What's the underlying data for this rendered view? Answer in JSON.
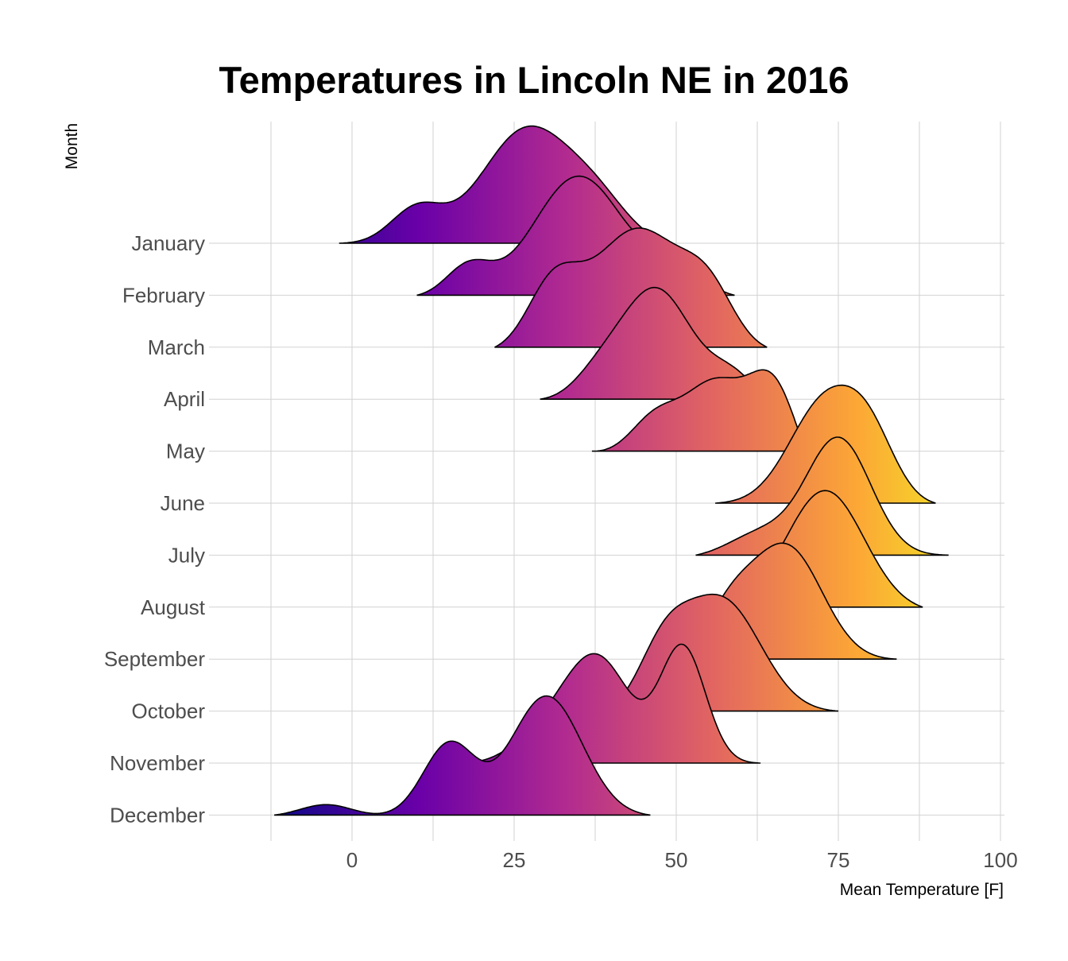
{
  "chart_data": {
    "type": "ridgeline",
    "title": "Temperatures in Lincoln NE in 2016",
    "xlabel": "Mean Temperature [F]",
    "ylabel": "Month",
    "xticks": [
      0,
      25,
      50,
      75,
      100
    ],
    "xlim": [
      -12,
      100
    ],
    "grid": true,
    "legend": "none",
    "colormap": "plasma",
    "colormap_stops": [
      "#0d0887",
      "#6a00a8",
      "#b12a90",
      "#e16462",
      "#fca636",
      "#f0f921"
    ],
    "months": [
      {
        "name": "January",
        "min": -2,
        "max": 49,
        "peaks": [
          [
            10,
            0.3,
            4
          ],
          [
            27,
            1.0,
            7
          ],
          [
            38,
            0.3,
            5
          ]
        ]
      },
      {
        "name": "February",
        "min": 10,
        "max": 59,
        "peaks": [
          [
            18,
            0.25,
            3.5
          ],
          [
            35,
            1.0,
            7
          ],
          [
            50,
            0.25,
            4
          ]
        ]
      },
      {
        "name": "March",
        "min": 22,
        "max": 64,
        "peaks": [
          [
            31,
            0.5,
            4
          ],
          [
            44,
            1.0,
            7
          ],
          [
            55,
            0.4,
            4
          ]
        ]
      },
      {
        "name": "April",
        "min": 29,
        "max": 64,
        "peaks": [
          [
            38,
            0.2,
            4
          ],
          [
            47,
            1.0,
            5.5
          ],
          [
            59,
            0.3,
            4
          ]
        ]
      },
      {
        "name": "May",
        "min": 37,
        "max": 70,
        "peaks": [
          [
            47,
            0.45,
            4
          ],
          [
            56,
            0.85,
            4.5
          ],
          [
            65,
            1.0,
            4
          ]
        ]
      },
      {
        "name": "June",
        "min": 56,
        "max": 90,
        "peaks": [
          [
            73,
            1.0,
            5.5
          ],
          [
            80,
            0.5,
            4
          ]
        ]
      },
      {
        "name": "July",
        "min": 53,
        "max": 92,
        "peaks": [
          [
            63,
            0.2,
            5
          ],
          [
            75,
            1.0,
            5
          ]
        ]
      },
      {
        "name": "August",
        "min": 53,
        "max": 88,
        "peaks": [
          [
            73,
            1.0,
            6
          ]
        ]
      },
      {
        "name": "September",
        "min": 50,
        "max": 84,
        "peaks": [
          [
            58,
            0.4,
            4
          ],
          [
            67,
            1.0,
            5.5
          ]
        ]
      },
      {
        "name": "October",
        "min": 39,
        "max": 75,
        "peaks": [
          [
            48,
            0.5,
            4
          ],
          [
            57,
            1.0,
            6
          ]
        ]
      },
      {
        "name": "November",
        "min": 18,
        "max": 63,
        "peaks": [
          [
            30,
            0.2,
            5
          ],
          [
            38,
            0.7,
            5
          ],
          [
            51,
            0.8,
            3.5
          ]
        ]
      },
      {
        "name": "December",
        "min": -12,
        "max": 46,
        "peaks": [
          [
            -4,
            0.1,
            4
          ],
          [
            15,
            0.6,
            4
          ],
          [
            30,
            1.0,
            5.5
          ]
        ]
      }
    ]
  }
}
